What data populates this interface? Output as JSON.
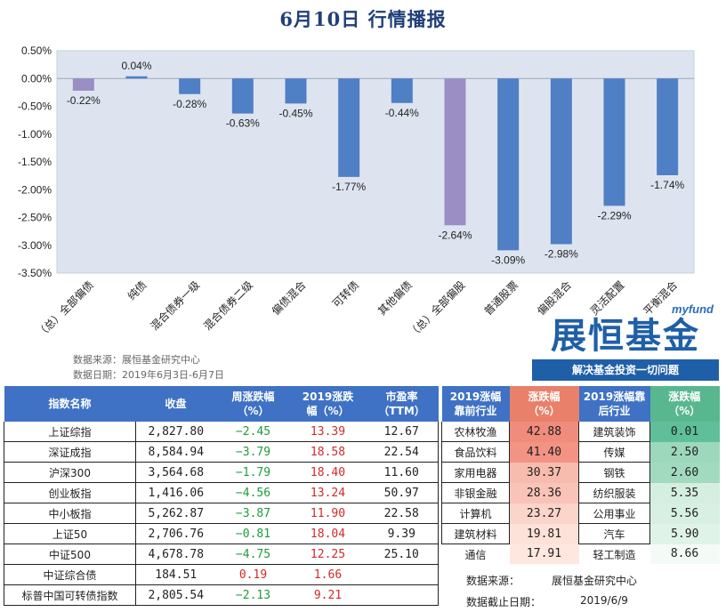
{
  "title": "6月10日  行情播报",
  "chart_data": {
    "type": "bar",
    "categories": [
      "（总）全部偏债",
      "纯债",
      "混合债券一级",
      "混合债券二级",
      "偏债混合",
      "可转债",
      "其他偏债",
      "（总）全部偏股",
      "普通股票",
      "偏股混合",
      "灵活配置",
      "平衡混合"
    ],
    "values": [
      -0.22,
      0.04,
      -0.28,
      -0.63,
      -0.45,
      -1.77,
      -0.44,
      -2.64,
      -3.09,
      -2.98,
      -2.29,
      -1.74
    ],
    "value_labels": [
      "-0.22%",
      "0.04%",
      "-0.28%",
      "-0.63%",
      "-0.45%",
      "-1.77%",
      "-0.44%",
      "-2.64%",
      "-3.09%",
      "-2.98%",
      "-2.29%",
      "-1.74%"
    ],
    "bar_colors": [
      "#9b8ec4",
      "#4f7fc4",
      "#4f7fc4",
      "#4f7fc4",
      "#4f7fc4",
      "#4f7fc4",
      "#4f7fc4",
      "#9b8ec4",
      "#4f7fc4",
      "#4f7fc4",
      "#4f7fc4",
      "#4f7fc4"
    ],
    "ylim": [
      -3.5,
      0.5
    ],
    "yticks": [
      0.5,
      0,
      -0.5,
      -1,
      -1.5,
      -2,
      -2.5,
      -3,
      -3.5
    ],
    "ytick_labels": [
      "0.50%",
      "0.00%",
      "-0.50%",
      "-1.00%",
      "-1.50%",
      "-2.00%",
      "-2.50%",
      "-3.00%",
      "-3.50%"
    ],
    "plot_bg": "#dde4f0",
    "grid": false
  },
  "source": {
    "line1": "数据来源：展恒基金研究中心",
    "line2": "数据日期：2019年6月3日-6月7日"
  },
  "logo": {
    "top": "myfund",
    "name": "展恒基金",
    "slogan": "解决基金投资一切问题"
  },
  "index_table": {
    "headers": [
      "指数名称",
      "收盘",
      "周涨跌幅\n（%）",
      "2019涨跌\n幅（%）",
      "市盈率\n（TTM）"
    ],
    "rows": [
      {
        "name": "上证综指",
        "close": "2,827.80",
        "week": "−2.45",
        "ytd": "13.39",
        "pe": "12.67"
      },
      {
        "name": "深证成指",
        "close": "8,584.94",
        "week": "−3.79",
        "ytd": "18.58",
        "pe": "22.54"
      },
      {
        "name": "沪深300",
        "close": "3,564.68",
        "week": "−1.79",
        "ytd": "18.40",
        "pe": "11.60"
      },
      {
        "name": "创业板指",
        "close": "1,416.06",
        "week": "−4.56",
        "ytd": "13.24",
        "pe": "50.97"
      },
      {
        "name": "中小板指",
        "close": "5,262.87",
        "week": "−3.87",
        "ytd": "11.90",
        "pe": "22.58"
      },
      {
        "name": "上证50",
        "close": "2,706.76",
        "week": "−0.81",
        "ytd": "18.04",
        "pe": "9.39"
      },
      {
        "name": "中证500",
        "close": "4,678.78",
        "week": "−4.75",
        "ytd": "12.25",
        "pe": "25.10"
      },
      {
        "name": "中证综合债",
        "close": "184.51",
        "week": "0.19",
        "ytd": "1.66",
        "pe": ""
      },
      {
        "name": "标普中国可转债指数",
        "close": "2,805.54",
        "week": "−2.13",
        "ytd": "9.21",
        "pe": ""
      }
    ]
  },
  "industry_table": {
    "headers": [
      "2019涨幅\n靠前行业",
      "涨跌幅\n（%）",
      "2019涨幅靠\n后行业",
      "涨跌幅\n（%）"
    ],
    "header_colors": [
      "#3f72c4",
      "#e8806a",
      "#3f72c4",
      "#58b78e"
    ],
    "rows": [
      {
        "top": "农林牧渔",
        "top_val": "42.88",
        "top_bg": "#f08c7c",
        "bot": "建筑装饰",
        "bot_val": "0.01",
        "bot_bg": "#5fbf9a"
      },
      {
        "top": "食品饮料",
        "top_val": "41.40",
        "top_bg": "#f29384",
        "bot": "传媒",
        "bot_val": "2.50",
        "bot_bg": "#9dd8bd"
      },
      {
        "top": "家用电器",
        "top_val": "30.37",
        "top_bg": "#f8bcae",
        "bot": "钢铁",
        "bot_val": "2.60",
        "bot_bg": "#a1dabf"
      },
      {
        "top": "非银金融",
        "top_val": "28.36",
        "top_bg": "#f9c4b7",
        "bot": "纺织服装",
        "bot_val": "5.35",
        "bot_bg": "#d4eee0"
      },
      {
        "top": "计算机",
        "top_val": "23.27",
        "top_bg": "#fbd4ca",
        "bot": "公用事业",
        "bot_val": "5.56",
        "bot_bg": "#d8f0e3"
      },
      {
        "top": "建筑材料",
        "top_val": "19.81",
        "top_bg": "#fde2d9",
        "bot": "汽车",
        "bot_val": "5.90",
        "bot_bg": "#dff3e8"
      },
      {
        "top": "通信",
        "top_val": "17.91",
        "top_bg": "#fee7df",
        "bot": "轻工制造",
        "bot_val": "8.66",
        "bot_bg": "#f4fbf7"
      }
    ],
    "footer": [
      {
        "label": "数据来源：",
        "value": "展恒基金研究中心"
      },
      {
        "label": "数据截止日期：",
        "value": "2019/6/9"
      }
    ]
  }
}
